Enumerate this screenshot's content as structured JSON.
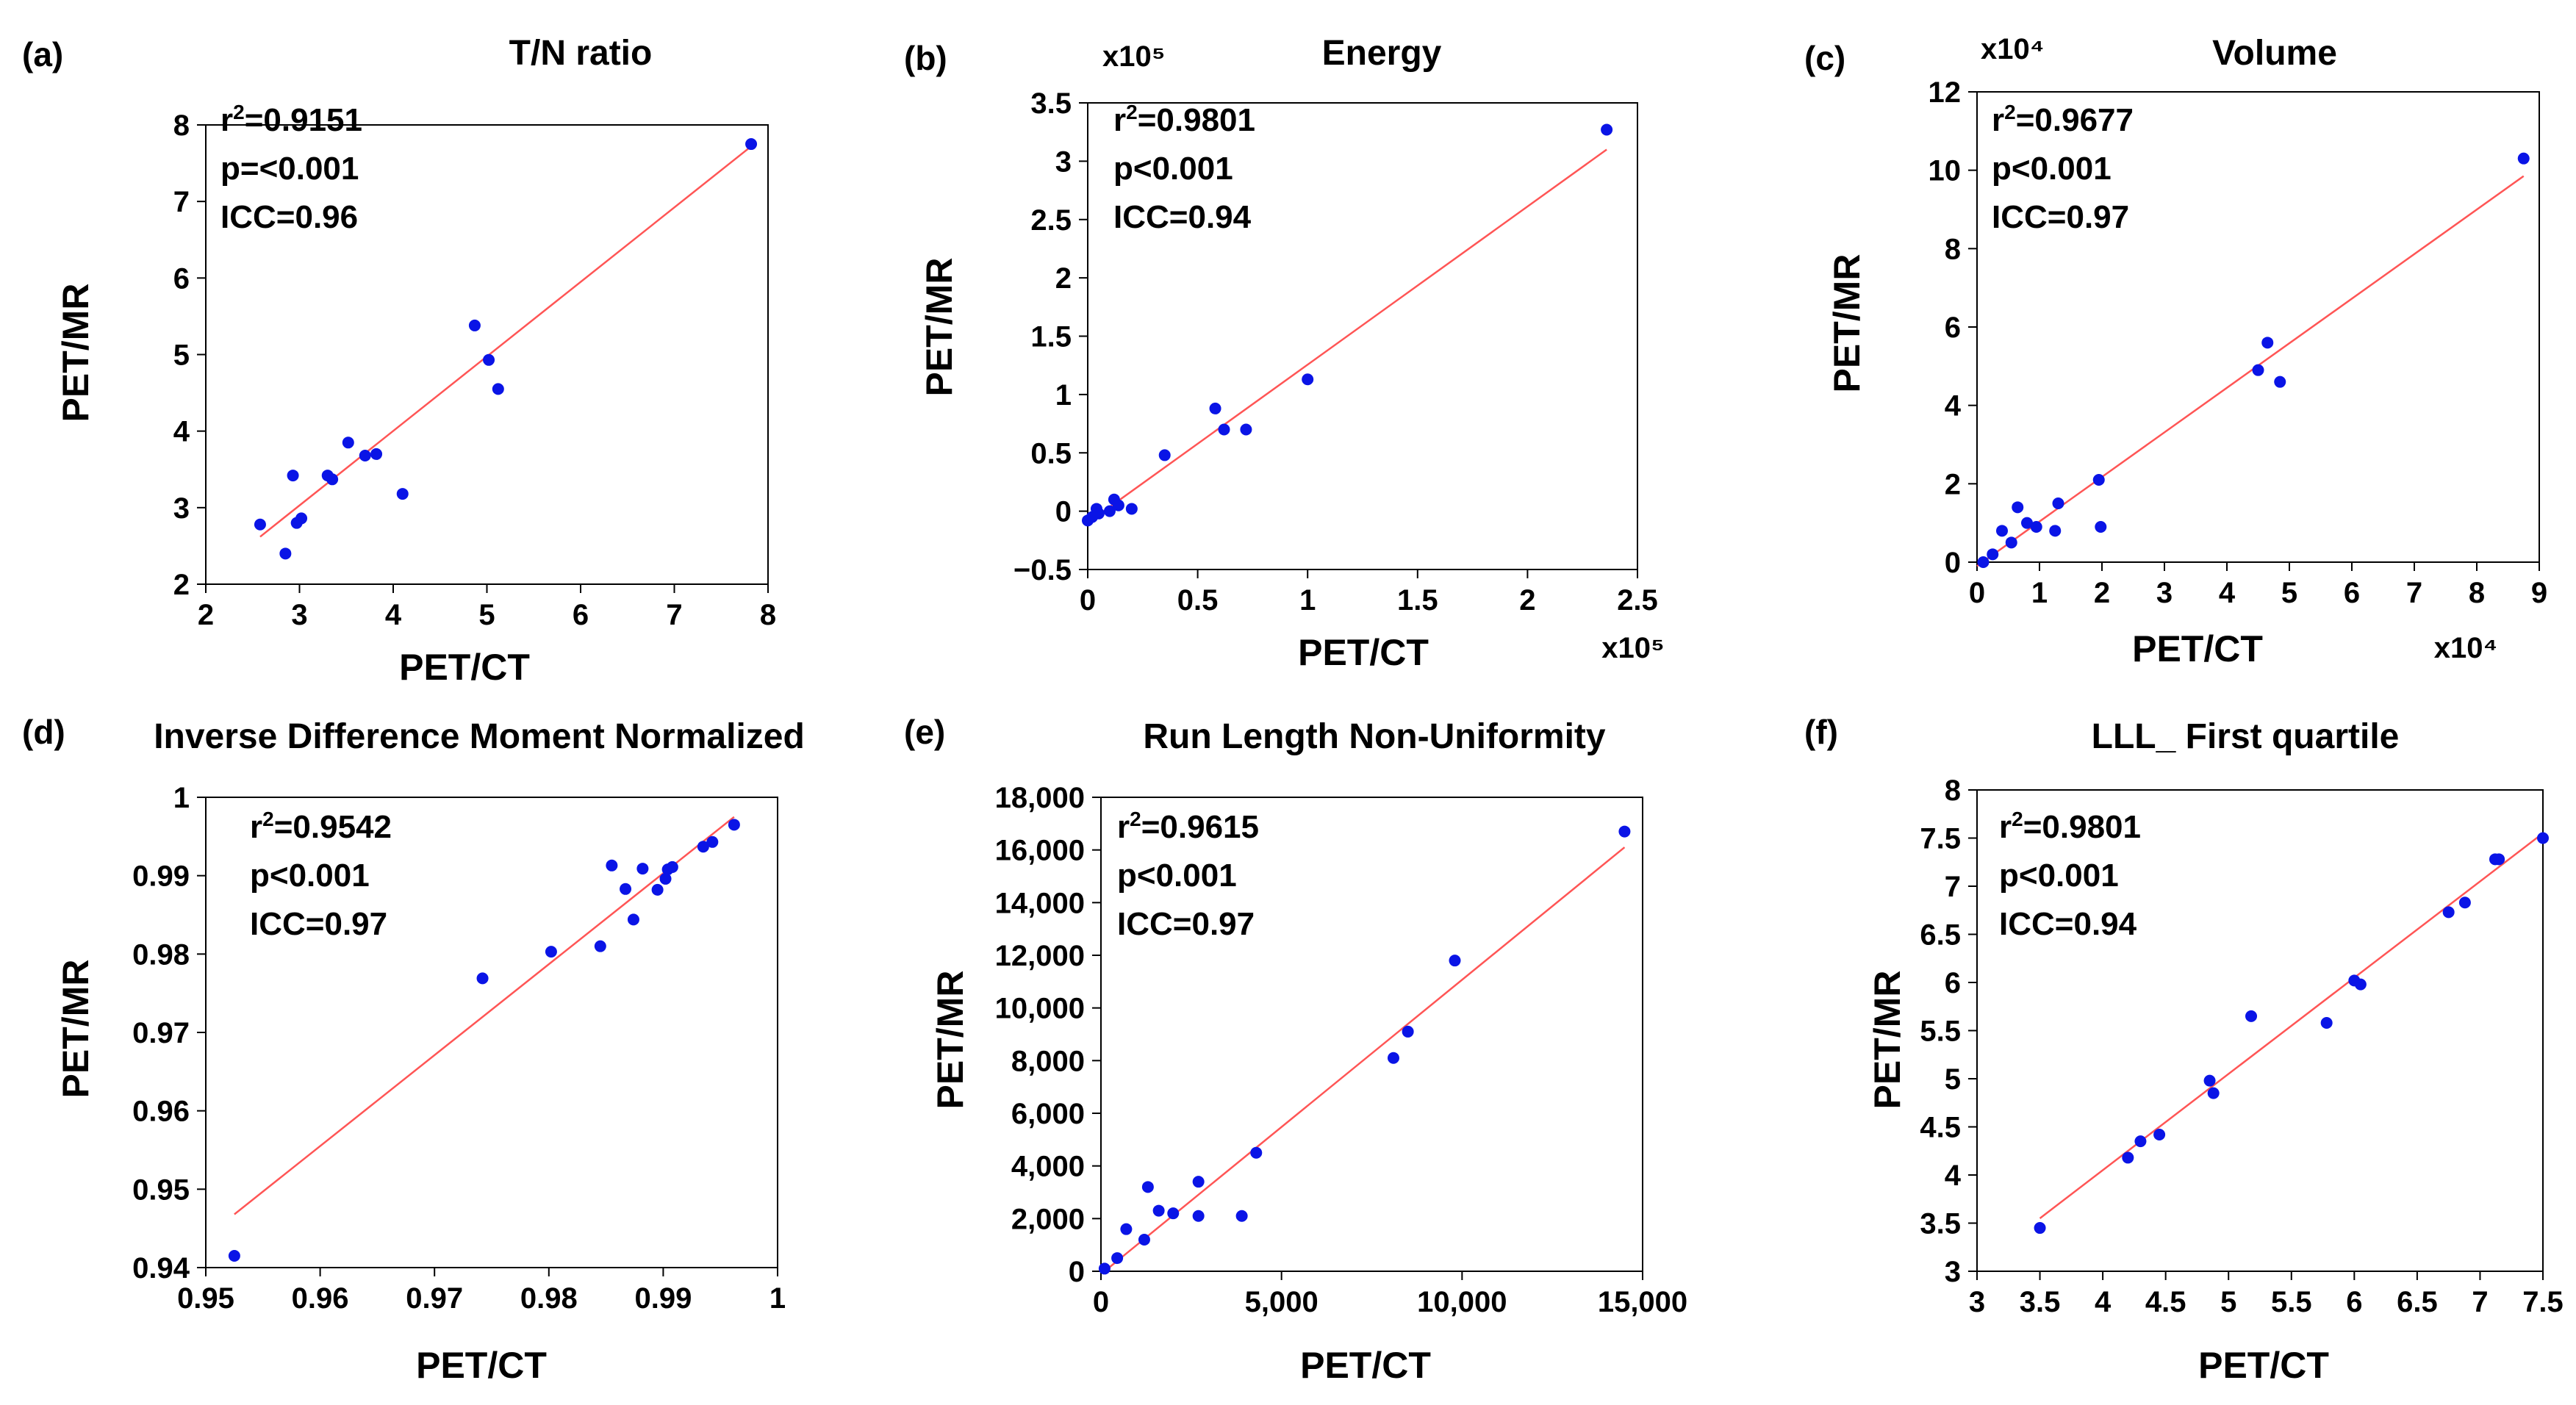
{
  "colors": {
    "point": "#0a14e6",
    "fit": "#ff5555",
    "axis": "#000000",
    "text": "#000000"
  },
  "chart_data": [
    {
      "panel_label": "(a)",
      "type": "scatter",
      "title": "T/N ratio",
      "xlabel": "PET/CT",
      "ylabel": "PET/MR",
      "xlim": [
        2,
        8
      ],
      "ylim": [
        2,
        8
      ],
      "xticks": [
        "2",
        "3",
        "4",
        "5",
        "6",
        "7",
        "8"
      ],
      "yticks": [
        "2",
        "3",
        "4",
        "5",
        "6",
        "7",
        "8"
      ],
      "x_exp": "",
      "y_exp": "",
      "stats": {
        "r2": "=0.9151",
        "p": "p=<0.001",
        "icc": "ICC=0.96"
      },
      "points": [
        [
          2.58,
          2.78
        ],
        [
          2.85,
          2.4
        ],
        [
          2.93,
          3.42
        ],
        [
          2.97,
          2.8
        ],
        [
          3.02,
          2.86
        ],
        [
          3.3,
          3.42
        ],
        [
          3.35,
          3.37
        ],
        [
          3.52,
          3.85
        ],
        [
          3.7,
          3.68
        ],
        [
          3.82,
          3.7
        ],
        [
          4.1,
          3.18
        ],
        [
          4.87,
          5.38
        ],
        [
          5.02,
          4.93
        ],
        [
          5.12,
          4.55
        ],
        [
          7.82,
          7.75
        ]
      ],
      "fit": [
        [
          2.58,
          2.62
        ],
        [
          7.82,
          7.72
        ]
      ]
    },
    {
      "panel_label": "(b)",
      "type": "scatter",
      "title": "Energy",
      "xlabel": "PET/CT",
      "ylabel": "PET/MR",
      "xlim": [
        0,
        2.5
      ],
      "ylim": [
        -0.5,
        3.5
      ],
      "xticks": [
        "0",
        "0.5",
        "1",
        "1.5",
        "2",
        "2.5"
      ],
      "yticks": [
        "−0.5",
        "0",
        "0.5",
        "1",
        "1.5",
        "2",
        "2.5",
        "3",
        "3.5"
      ],
      "x_exp": "x10⁵",
      "y_exp": "x10⁵",
      "stats": {
        "r2": "=0.9801",
        "p": "p<0.001",
        "icc": "ICC=0.94"
      },
      "points": [
        [
          0.0,
          -0.08
        ],
        [
          0.02,
          -0.05
        ],
        [
          0.04,
          0.02
        ],
        [
          0.05,
          -0.02
        ],
        [
          0.1,
          0.0
        ],
        [
          0.12,
          0.1
        ],
        [
          0.14,
          0.05
        ],
        [
          0.2,
          0.02
        ],
        [
          0.35,
          0.48
        ],
        [
          0.58,
          0.88
        ],
        [
          0.62,
          0.7
        ],
        [
          0.72,
          0.7
        ],
        [
          1.0,
          1.13
        ],
        [
          2.36,
          3.27
        ]
      ],
      "fit": [
        [
          0.0,
          -0.1
        ],
        [
          2.36,
          3.1
        ]
      ]
    },
    {
      "panel_label": "(c)",
      "type": "scatter",
      "title": "Volume",
      "xlabel": "PET/CT",
      "ylabel": "PET/MR",
      "xlim": [
        0,
        9
      ],
      "ylim": [
        0,
        12
      ],
      "xticks": [
        "0",
        "1",
        "2",
        "3",
        "4",
        "5",
        "6",
        "7",
        "8",
        "9"
      ],
      "yticks": [
        "0",
        "2",
        "4",
        "6",
        "8",
        "10",
        "12"
      ],
      "x_exp": "x10⁴",
      "y_exp": "x10⁴",
      "stats": {
        "r2": "=0.9677",
        "p": "p<0.001",
        "icc": "ICC=0.97"
      },
      "points": [
        [
          0.1,
          0.0
        ],
        [
          0.25,
          0.2
        ],
        [
          0.4,
          0.8
        ],
        [
          0.55,
          0.5
        ],
        [
          0.65,
          1.4
        ],
        [
          0.8,
          1.0
        ],
        [
          0.95,
          0.9
        ],
        [
          1.25,
          0.8
        ],
        [
          1.3,
          1.5
        ],
        [
          1.95,
          2.1
        ],
        [
          1.98,
          0.9
        ],
        [
          4.5,
          4.9
        ],
        [
          4.65,
          5.6
        ],
        [
          4.85,
          4.6
        ],
        [
          8.75,
          10.3
        ]
      ],
      "fit": [
        [
          0.0,
          -0.1
        ],
        [
          8.75,
          9.85
        ]
      ]
    },
    {
      "panel_label": "(d)",
      "type": "scatter",
      "title": "Inverse Difference Moment Normalized",
      "xlabel": "PET/CT",
      "ylabel": "PET/MR",
      "xlim": [
        0.95,
        1
      ],
      "ylim": [
        0.94,
        1
      ],
      "xticks": [
        "0.95",
        "0.96",
        "0.97",
        "0.98",
        "0.99",
        "1"
      ],
      "yticks": [
        "0.94",
        "0.95",
        "0.96",
        "0.97",
        "0.98",
        "0.99",
        "1"
      ],
      "x_exp": "",
      "y_exp": "",
      "stats": {
        "r2": "=0.9542",
        "p": "p<0.001",
        "icc": "ICC=0.97"
      },
      "points": [
        [
          0.9525,
          0.9415
        ],
        [
          0.9742,
          0.9769
        ],
        [
          0.9802,
          0.9803
        ],
        [
          0.9845,
          0.981
        ],
        [
          0.9855,
          0.9913
        ],
        [
          0.9867,
          0.9883
        ],
        [
          0.9874,
          0.9844
        ],
        [
          0.9882,
          0.9909
        ],
        [
          0.9895,
          0.9882
        ],
        [
          0.9902,
          0.9896
        ],
        [
          0.9904,
          0.9908
        ],
        [
          0.9908,
          0.9911
        ],
        [
          0.9935,
          0.9937
        ],
        [
          0.9943,
          0.9943
        ],
        [
          0.9962,
          0.9965
        ]
      ],
      "fit": [
        [
          0.9525,
          0.9468
        ],
        [
          0.9962,
          0.9975
        ]
      ]
    },
    {
      "panel_label": "(e)",
      "type": "scatter",
      "title": "Run Length Non-Uniformity",
      "xlabel": "PET/CT",
      "ylabel": "PET/MR",
      "xlim": [
        0,
        15000
      ],
      "ylim": [
        0,
        18000
      ],
      "xticks": [
        "0",
        "5,000",
        "10,000",
        "15,000"
      ],
      "yticks": [
        "0",
        "2,000",
        "4,000",
        "6,000",
        "8,000",
        "10,000",
        "12,000",
        "14,000",
        "16,000",
        "18,000"
      ],
      "x_exp": "",
      "y_exp": "",
      "stats": {
        "r2": "=0.9615",
        "p": "p<0.001",
        "icc": "ICC=0.97"
      },
      "points": [
        [
          100,
          100
        ],
        [
          450,
          500
        ],
        [
          700,
          1600
        ],
        [
          1200,
          1200
        ],
        [
          1300,
          3200
        ],
        [
          1600,
          2300
        ],
        [
          2000,
          2200
        ],
        [
          2700,
          2100
        ],
        [
          2700,
          3400
        ],
        [
          3900,
          2100
        ],
        [
          4300,
          4500
        ],
        [
          8100,
          8100
        ],
        [
          8500,
          9100
        ],
        [
          9800,
          11800
        ],
        [
          14500,
          16700
        ]
      ],
      "fit": [
        [
          100,
          0
        ],
        [
          14500,
          16100
        ]
      ]
    },
    {
      "panel_label": "(f)",
      "type": "scatter",
      "title": "LLL_ First quartile",
      "xlabel": "PET/CT",
      "ylabel": "PET/MR",
      "xlim": [
        3,
        7.5
      ],
      "ylim": [
        3,
        8
      ],
      "xticks": [
        "3",
        "3.5",
        "4",
        "4.5",
        "5",
        "5.5",
        "6",
        "6.5",
        "7",
        "7.5"
      ],
      "yticks": [
        "3",
        "3.5",
        "4",
        "4.5",
        "5",
        "5.5",
        "6",
        "6.5",
        "7",
        "7.5",
        "8"
      ],
      "x_exp": "",
      "y_exp": "",
      "stats": {
        "r2": "=0.9801",
        "p": "p<0.001",
        "icc": "ICC=0.94"
      },
      "points": [
        [
          3.5,
          3.45
        ],
        [
          4.2,
          4.18
        ],
        [
          4.3,
          4.35
        ],
        [
          4.45,
          4.42
        ],
        [
          4.85,
          4.98
        ],
        [
          4.88,
          4.85
        ],
        [
          5.18,
          5.65
        ],
        [
          5.78,
          5.58
        ],
        [
          6.0,
          6.02
        ],
        [
          6.05,
          5.98
        ],
        [
          6.75,
          6.73
        ],
        [
          6.88,
          6.83
        ],
        [
          7.12,
          7.28
        ],
        [
          7.15,
          7.28
        ],
        [
          7.5,
          7.5
        ]
      ],
      "fit": [
        [
          3.5,
          3.55
        ],
        [
          7.5,
          7.55
        ]
      ]
    }
  ]
}
